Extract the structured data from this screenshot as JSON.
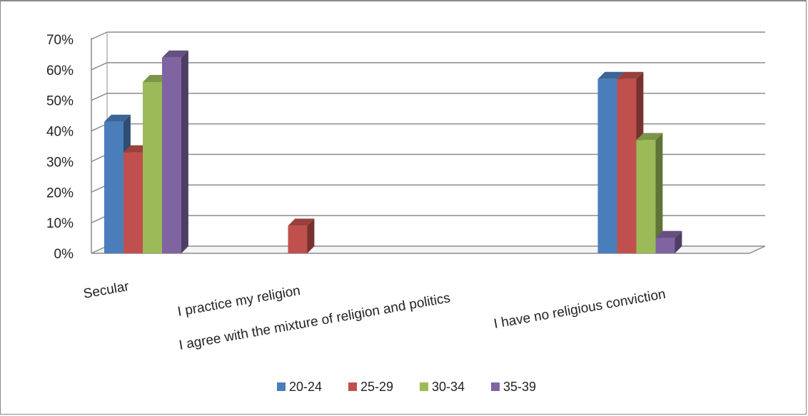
{
  "chart_data": {
    "type": "bar",
    "categories": [
      "Secular",
      "I practice my religion",
      "I agree with the mixture of religion and politics",
      "I have no religious conviction"
    ],
    "series": [
      {
        "name": "20-24",
        "color": "#4a7ebb",
        "values": [
          43,
          0,
          0,
          57
        ]
      },
      {
        "name": "25-29",
        "color": "#c0504d",
        "values": [
          33,
          9,
          0,
          57
        ]
      },
      {
        "name": "30-34",
        "color": "#9bbb59",
        "values": [
          56,
          0,
          0,
          37
        ]
      },
      {
        "name": "35-39",
        "color": "#8064a2",
        "values": [
          64,
          0,
          0,
          5
        ]
      }
    ],
    "y_ticks": [
      "0%",
      "10%",
      "20%",
      "30%",
      "40%",
      "50%",
      "60%",
      "70%"
    ],
    "ylim": [
      0,
      70
    ],
    "y_unit": "%",
    "grid": true,
    "legend_position": "bottom",
    "style": "3d-clustered-column"
  }
}
